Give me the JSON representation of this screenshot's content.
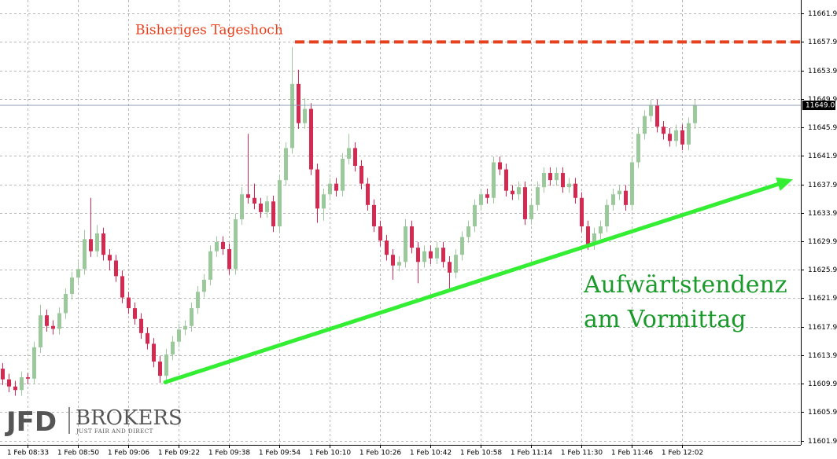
{
  "chart_data": {
    "type": "candlestick",
    "categories": [
      null,
      null,
      null,
      null,
      "1 Feb 08:33",
      null,
      null,
      null,
      null,
      null,
      null,
      null,
      "1 Feb 08:50",
      null,
      null,
      null,
      null,
      null,
      null,
      null,
      "1 Feb 09:06",
      null,
      null,
      null,
      null,
      null,
      null,
      null,
      "1 Feb 09:22",
      null,
      null,
      null,
      null,
      null,
      null,
      null,
      "1 Feb 09:38",
      null,
      null,
      null,
      null,
      null,
      null,
      null,
      "1 Feb 09:54",
      null,
      null,
      null,
      null,
      null,
      null,
      null,
      "1 Feb 10:10",
      null,
      null,
      null,
      null,
      null,
      null,
      null,
      "1 Feb 10:26",
      null,
      null,
      null,
      null,
      null,
      null,
      null,
      "1 Feb 10:42",
      null,
      null,
      null,
      null,
      null,
      null,
      null,
      "1 Feb 10:58",
      null,
      null,
      null,
      null,
      null,
      null,
      null,
      "1 Feb 11:14",
      null,
      null,
      null,
      null,
      null,
      null,
      null,
      "1 Feb 11:30",
      null,
      null,
      null,
      null,
      null,
      null,
      null,
      "1 Feb 11:46",
      null,
      null,
      null,
      null,
      null,
      null,
      null,
      "1 Feb 12:02",
      null,
      null
    ],
    "open": [
      11612.0,
      11610.5,
      11609.5,
      11609.0,
      11610.8,
      11610.6,
      11615.0,
      11619.5,
      11618.0,
      11617.6,
      11619.8,
      11622.5,
      11624.8,
      11626.0,
      11630.2,
      11628.5,
      11631.0,
      11628.0,
      11627.2,
      11625.0,
      11622.0,
      11620.5,
      11619.0,
      11617.0,
      11615.5,
      11613.0,
      11611.0,
      11614.0,
      11615.8,
      11617.5,
      11618.0,
      11620.5,
      11622.8,
      11624.5,
      11628.5,
      11629.8,
      11628.8,
      11626.0,
      11633.0,
      11636.5,
      11636.0,
      11635.2,
      11634.0,
      11635.5,
      11632.0,
      11638.5,
      11643.0,
      11652.0,
      11646.5,
      11648.5,
      11640.0,
      11634.5,
      11636.5,
      11638.0,
      11637.0,
      11641.5,
      11643.0,
      11640.5,
      11638.0,
      11635.0,
      11632.0,
      11630.0,
      11628.0,
      11626.5,
      11627.0,
      11632.0,
      11629.0,
      11627.0,
      11628.5,
      11627.5,
      11629.0,
      11627.0,
      11625.5,
      11628.0,
      11630.5,
      11632.0,
      11635.0,
      11636.5,
      11636.0,
      11641.0,
      11640.0,
      11637.0,
      11636.5,
      11637.5,
      11633.0,
      11635.0,
      11637.5,
      11639.5,
      11638.5,
      11639.5,
      11637.5,
      11638.0,
      11636.0,
      11632.0,
      11629.5,
      11631.0,
      11632.0,
      11635.0,
      11636.5,
      11637.0,
      11635.0,
      11641.0,
      11645.0,
      11647.5,
      11649.0,
      11646.0,
      11645.0,
      11644.0,
      11645.5,
      11643.5,
      11646.5
    ],
    "high": [
      11612.8,
      11611.3,
      11610.3,
      11611.6,
      11611.4,
      11615.8,
      11621.0,
      11620.3,
      11618.8,
      11620.6,
      11623.3,
      11625.6,
      11627.0,
      11631.5,
      11636.0,
      11632.2,
      11631.8,
      11628.8,
      11628.0,
      11625.8,
      11622.8,
      11621.3,
      11619.8,
      11617.8,
      11616.3,
      11613.8,
      11614.8,
      11616.6,
      11618.3,
      11618.8,
      11621.3,
      11623.6,
      11625.3,
      11629.3,
      11630.6,
      11630.6,
      11629.6,
      11633.8,
      11637.5,
      11645.0,
      11638.0,
      11636.0,
      11636.3,
      11636.3,
      11639.3,
      11643.8,
      11657.2,
      11654.0,
      11650.0,
      11649.3,
      11640.8,
      11637.3,
      11638.8,
      11638.8,
      11642.3,
      11645.0,
      11643.8,
      11641.3,
      11638.8,
      11635.8,
      11632.8,
      11630.8,
      11628.8,
      11627.8,
      11633.0,
      11632.8,
      11629.8,
      11629.3,
      11629.3,
      11629.8,
      11629.8,
      11627.8,
      11628.8,
      11631.3,
      11632.8,
      11635.8,
      11637.3,
      11637.3,
      11641.8,
      11641.8,
      11640.8,
      11637.8,
      11638.3,
      11638.3,
      11635.8,
      11638.3,
      11640.3,
      11640.3,
      11640.3,
      11640.3,
      11638.8,
      11638.8,
      11636.8,
      11632.8,
      11631.8,
      11632.8,
      11635.8,
      11637.3,
      11637.8,
      11637.8,
      11641.8,
      11645.8,
      11648.3,
      11649.8,
      11649.8,
      11646.8,
      11645.8,
      11646.3,
      11646.3,
      11647.3,
      11649.8
    ],
    "low": [
      11609.7,
      11608.7,
      11608.2,
      11608.2,
      11609.8,
      11609.8,
      11614.2,
      11617.2,
      11616.8,
      11616.8,
      11619.0,
      11621.7,
      11624.0,
      11625.2,
      11627.7,
      11627.7,
      11627.2,
      11625.8,
      11624.2,
      11621.2,
      11619.7,
      11618.2,
      11616.2,
      11614.7,
      11612.2,
      11610.0,
      11610.2,
      11613.2,
      11615.0,
      11616.7,
      11617.2,
      11619.7,
      11622.0,
      11623.7,
      11627.7,
      11628.0,
      11625.2,
      11625.2,
      11632.2,
      11635.2,
      11634.4,
      11633.2,
      11633.2,
      11631.2,
      11631.2,
      11637.7,
      11642.2,
      11645.7,
      11645.7,
      11639.2,
      11632.5,
      11632.8,
      11635.7,
      11636.2,
      11636.2,
      11640.7,
      11639.7,
      11637.2,
      11634.2,
      11631.2,
      11629.2,
      11627.2,
      11624.5,
      11625.7,
      11626.2,
      11628.2,
      11624.0,
      11626.2,
      11626.7,
      11626.7,
      11626.2,
      11623.0,
      11624.7,
      11627.2,
      11629.7,
      11631.2,
      11634.2,
      11635.2,
      11635.2,
      11639.2,
      11636.2,
      11635.7,
      11635.7,
      11632.2,
      11632.2,
      11634.2,
      11636.7,
      11637.7,
      11637.7,
      11636.7,
      11636.7,
      11635.2,
      11631.2,
      11628.7,
      11628.7,
      11630.2,
      11631.2,
      11634.2,
      11635.7,
      11634.2,
      11634.2,
      11640.2,
      11644.2,
      11646.7,
      11645.2,
      11644.2,
      11643.2,
      11643.2,
      11642.7,
      11642.7,
      11645.7
    ],
    "close": [
      11610.5,
      11609.5,
      11609.0,
      11610.8,
      11610.6,
      11615.0,
      11619.5,
      11618.0,
      11617.6,
      11619.8,
      11622.5,
      11624.8,
      11626.0,
      11630.2,
      11628.5,
      11631.0,
      11628.0,
      11627.2,
      11625.0,
      11622.0,
      11620.5,
      11619.0,
      11617.0,
      11615.5,
      11613.0,
      11611.0,
      11614.0,
      11615.8,
      11617.5,
      11618.0,
      11620.5,
      11622.8,
      11624.5,
      11628.5,
      11629.8,
      11628.8,
      11626.0,
      11633.0,
      11636.5,
      11636.0,
      11635.2,
      11634.0,
      11635.5,
      11632.0,
      11638.5,
      11643.0,
      11652.0,
      11646.5,
      11648.5,
      11640.0,
      11634.5,
      11636.5,
      11638.0,
      11637.0,
      11641.5,
      11643.0,
      11640.5,
      11638.0,
      11635.0,
      11632.0,
      11630.0,
      11628.0,
      11626.5,
      11627.0,
      11632.0,
      11629.0,
      11627.0,
      11628.5,
      11627.5,
      11629.0,
      11627.0,
      11625.5,
      11628.0,
      11630.5,
      11632.0,
      11635.0,
      11636.5,
      11636.0,
      11641.0,
      11640.0,
      11637.0,
      11636.5,
      11637.5,
      11633.0,
      11635.0,
      11637.5,
      11639.5,
      11638.5,
      11639.5,
      11637.5,
      11638.0,
      11636.0,
      11632.0,
      11629.5,
      11631.0,
      11632.0,
      11635.0,
      11636.5,
      11637.0,
      11635.0,
      11641.0,
      11645.0,
      11647.5,
      11649.0,
      11646.0,
      11645.0,
      11644.0,
      11645.5,
      11643.5,
      11646.5,
      11649.0
    ],
    "up_color": "#9cc99c",
    "down_color": "#d42a52",
    "ylim": [
      11601.3,
      11663.8
    ],
    "yticks": [
      11601.9,
      11605.9,
      11609.9,
      11613.9,
      11617.9,
      11621.9,
      11625.9,
      11629.9,
      11633.9,
      11637.9,
      11641.9,
      11645.9,
      11649.9,
      11653.9,
      11657.9,
      11661.9
    ],
    "grid": true,
    "last_price": {
      "value": 11649.0,
      "label": "11649.0"
    },
    "day_high": {
      "value": 11657.9,
      "label": "Bisheriges Tageshoch",
      "color": "#e8401c"
    },
    "trend": {
      "from": 11610.1,
      "to": 11638.6,
      "color": "#33ee33"
    },
    "annotation": {
      "lines": [
        "Aufwärtstendenz",
        "am Vormittag"
      ],
      "color": "#1a9a2a"
    },
    "logo": {
      "brand": "JFD",
      "name": "BROKERS",
      "tagline": "JUST FAIR AND DIRECT"
    }
  }
}
